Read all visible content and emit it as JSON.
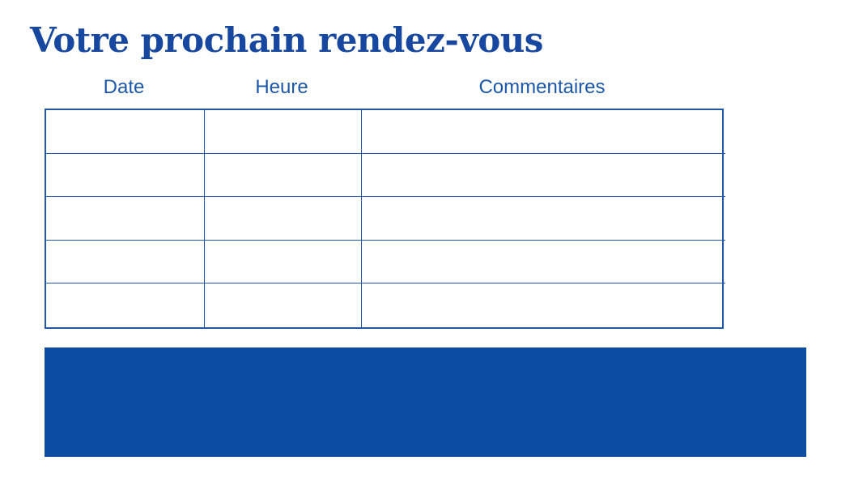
{
  "page": {
    "title": "Votre prochain rendez-vous"
  },
  "table": {
    "headers": [
      "Date",
      "Heure",
      "Commentaires"
    ],
    "rows": [
      [
        "",
        "",
        ""
      ],
      [
        "",
        "",
        ""
      ],
      [
        "",
        "",
        ""
      ],
      [
        "",
        "",
        ""
      ],
      [
        "",
        "",
        ""
      ]
    ]
  },
  "colors": {
    "title": "#17479e",
    "header_text": "#1c57a9",
    "table_border": "#2357a8",
    "banner": "#0c4da2"
  }
}
